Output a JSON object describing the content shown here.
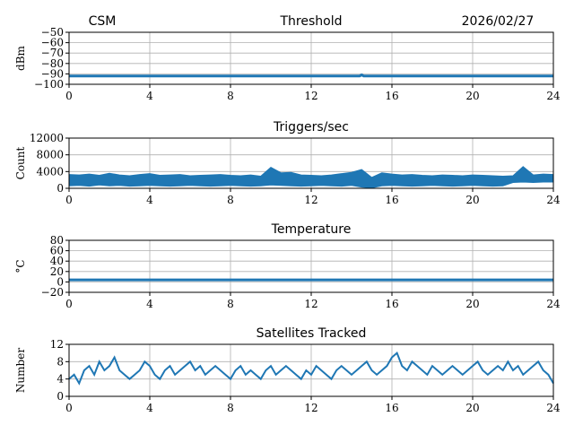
{
  "header": {
    "left": "CSM",
    "right": "2026/02/27"
  },
  "colors": {
    "line": "#1f77b4",
    "grid": "#b0b0b0"
  },
  "chart_data": [
    {
      "type": "line",
      "title": "Threshold",
      "ylabel": "dBm",
      "xlim": [
        0,
        24
      ],
      "ylim": [
        -100,
        -50
      ],
      "xticks": [
        "0",
        "4",
        "8",
        "12",
        "16",
        "20",
        "24"
      ],
      "yticks": [
        "−50",
        "−60",
        "−70",
        "−80",
        "−90",
        "−100"
      ],
      "ytick_values": [
        -50,
        -60,
        -70,
        -80,
        -90,
        -100
      ],
      "x": [
        0,
        14.4,
        14.5,
        14.6,
        24
      ],
      "values": [
        -92,
        -92,
        -91,
        -92,
        -92
      ],
      "grid": true
    },
    {
      "type": "area",
      "title": "Triggers/sec",
      "ylabel": "Count",
      "xlim": [
        0,
        24
      ],
      "ylim": [
        0,
        12000
      ],
      "xticks": [
        "0",
        "4",
        "8",
        "12",
        "16",
        "20",
        "24"
      ],
      "yticks": [
        "12000",
        "8000",
        "4000",
        "0"
      ],
      "ytick_values": [
        12000,
        8000,
        4000,
        0
      ],
      "x_step": 0.5,
      "max": [
        3300,
        3200,
        3400,
        3100,
        3600,
        3200,
        3000,
        3300,
        3500,
        3100,
        3200,
        3300,
        3000,
        3100,
        3200,
        3300,
        3100,
        3000,
        3200,
        2900,
        5000,
        3700,
        3800,
        3200,
        3100,
        3000,
        3200,
        3500,
        3800,
        4500,
        2600,
        3700,
        3400,
        3200,
        3300,
        3100,
        3000,
        3200,
        3100,
        3000,
        3200,
        3100,
        3000,
        2900,
        3000,
        5200,
        3200,
        3400,
        3300
      ],
      "min": [
        600,
        700,
        500,
        800,
        600,
        700,
        500,
        600,
        700,
        600,
        500,
        600,
        700,
        600,
        500,
        600,
        700,
        600,
        500,
        600,
        800,
        700,
        600,
        500,
        600,
        700,
        600,
        500,
        700,
        300,
        100,
        600,
        700,
        600,
        500,
        600,
        700,
        600,
        500,
        600,
        700,
        600,
        500,
        600,
        1400,
        1500,
        1400,
        1500,
        1500
      ],
      "grid": true
    },
    {
      "type": "line",
      "title": "Temperature",
      "ylabel": "°C",
      "xlim": [
        0,
        24
      ],
      "ylim": [
        -20,
        80
      ],
      "xticks": [
        "0",
        "4",
        "8",
        "12",
        "16",
        "20",
        "24"
      ],
      "yticks": [
        "80",
        "60",
        "40",
        "20",
        "0",
        "−20"
      ],
      "ytick_values": [
        80,
        60,
        40,
        20,
        0,
        -20
      ],
      "x": [
        0,
        24
      ],
      "values": [
        4,
        4
      ],
      "grid": true
    },
    {
      "type": "line",
      "title": "Satellites Tracked",
      "ylabel": "Number",
      "xlim": [
        0,
        24
      ],
      "ylim": [
        0,
        12
      ],
      "xticks": [
        "0",
        "4",
        "8",
        "12",
        "16",
        "20",
        "24"
      ],
      "yticks": [
        "12",
        "8",
        "4",
        "0"
      ],
      "ytick_values": [
        12,
        8,
        4,
        0
      ],
      "x_step": 0.25,
      "values": [
        4,
        5,
        3,
        6,
        7,
        5,
        8,
        6,
        7,
        9,
        6,
        5,
        4,
        5,
        6,
        8,
        7,
        5,
        4,
        6,
        7,
        5,
        6,
        7,
        8,
        6,
        7,
        5,
        6,
        7,
        6,
        5,
        4,
        6,
        7,
        5,
        6,
        5,
        4,
        6,
        7,
        5,
        6,
        7,
        6,
        5,
        4,
        6,
        5,
        7,
        6,
        5,
        4,
        6,
        7,
        6,
        5,
        6,
        7,
        8,
        6,
        5,
        6,
        7,
        9,
        10,
        7,
        6,
        8,
        7,
        6,
        5,
        7,
        6,
        5,
        6,
        7,
        6,
        5,
        6,
        7,
        8,
        6,
        5,
        6,
        7,
        6,
        8,
        6,
        7,
        5,
        6,
        7,
        8,
        6,
        5,
        3
      ],
      "grid": true
    }
  ]
}
